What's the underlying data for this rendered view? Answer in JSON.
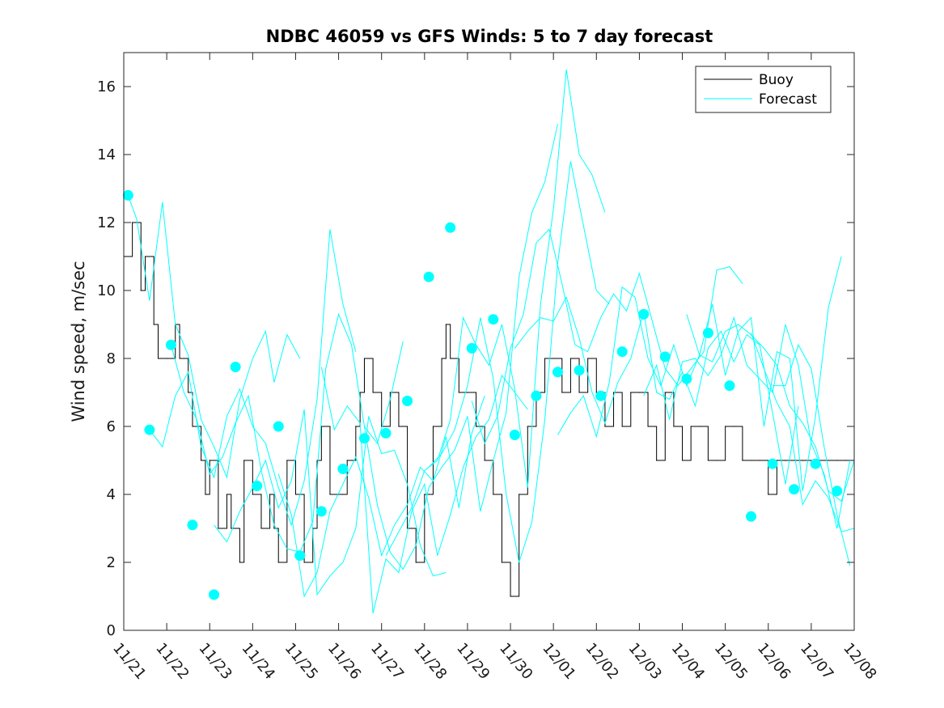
{
  "chart_data": {
    "type": "line",
    "title": "NDBC 46059 vs GFS Winds: 5 to 7 day forecast",
    "xlabel": "",
    "ylabel": "Wind speed, m/sec",
    "x_unit": "days since 11/21 00:00",
    "xlim": [
      0,
      17
    ],
    "ylim": [
      0,
      17
    ],
    "yticks": [
      0,
      2,
      4,
      6,
      8,
      10,
      12,
      14,
      16
    ],
    "xtick_labels": [
      "11/21",
      "11/22",
      "11/23",
      "11/24",
      "11/25",
      "11/26",
      "11/27",
      "11/28",
      "11/29",
      "11/30",
      "12/01",
      "12/02",
      "12/03",
      "12/04",
      "12/05",
      "12/06",
      "12/07",
      "12/08"
    ],
    "grid": false,
    "legend": {
      "placement": "top-right",
      "entries": [
        {
          "label": "Buoy",
          "color": "#000000"
        },
        {
          "label": "Forecast",
          "color": "#00ffff"
        }
      ]
    },
    "series": [
      {
        "name": "Buoy",
        "color": "#000000",
        "x": [
          0.0,
          0.2,
          0.4,
          0.5,
          0.7,
          0.8,
          1.0,
          1.2,
          1.3,
          1.5,
          1.6,
          1.8,
          1.9,
          2.0,
          2.2,
          2.4,
          2.5,
          2.7,
          2.8,
          3.0,
          3.2,
          3.4,
          3.5,
          3.6,
          3.8,
          4.0,
          4.2,
          4.4,
          4.5,
          4.6,
          4.8,
          5.0,
          5.1,
          5.2,
          5.4,
          5.5,
          5.6,
          5.8,
          6.0,
          6.2,
          6.4,
          6.6,
          6.8,
          7.0,
          7.2,
          7.4,
          7.5,
          7.6,
          7.8,
          8.0,
          8.2,
          8.4,
          8.6,
          8.8,
          9.0,
          9.2,
          9.4,
          9.5,
          9.6,
          9.8,
          10.0,
          10.2,
          10.4,
          10.6,
          10.8,
          11.0,
          11.2,
          11.4,
          11.6,
          11.8,
          12.0,
          12.2,
          12.4,
          12.6,
          12.8,
          13.0,
          13.2,
          13.4,
          13.6,
          13.8,
          14.0,
          14.2,
          14.4,
          14.6,
          14.8,
          15.0,
          15.2,
          15.4,
          15.6,
          15.8,
          16.0,
          16.2,
          16.4,
          16.6,
          16.8,
          17.0
        ],
        "y": [
          11,
          12,
          10,
          11,
          9,
          8,
          8,
          9,
          8,
          7,
          6,
          5,
          4,
          5,
          3,
          4,
          3,
          2,
          5,
          4,
          3,
          4,
          3,
          2,
          5,
          4,
          2,
          3,
          5,
          6,
          4,
          4,
          4,
          5,
          6,
          7,
          8,
          7,
          6,
          7,
          6,
          3,
          2,
          4,
          6,
          8,
          9,
          8,
          7,
          7,
          6,
          5,
          4,
          2,
          1,
          4,
          6,
          6,
          7,
          8,
          8,
          7,
          8,
          7,
          8,
          7,
          6,
          7,
          6,
          7,
          7,
          6,
          5,
          7,
          6,
          5,
          6,
          6,
          5,
          5,
          6,
          6,
          5,
          5,
          5,
          4,
          5,
          5,
          5,
          5,
          5,
          5,
          5,
          5,
          5,
          5
        ]
      },
      {
        "name": "Forecast",
        "color": "#00ffff",
        "x": [
          0.1,
          0.6,
          1.1,
          1.6,
          2.1,
          2.6,
          3.1,
          3.6,
          4.1,
          4.6,
          5.1,
          5.6,
          6.1,
          6.6,
          7.1,
          7.6,
          8.1,
          8.6,
          9.1,
          9.6,
          10.1,
          10.6,
          11.1,
          11.6,
          12.1,
          12.6,
          13.1,
          13.6,
          14.1,
          14.6,
          15.1,
          15.6,
          16.1,
          16.6
        ],
        "y": [
          12.8,
          5.9,
          8.4,
          3.1,
          1.05,
          7.75,
          4.25,
          6.0,
          2.2,
          3.5,
          4.75,
          5.65,
          5.8,
          6.75,
          10.4,
          11.85,
          8.3,
          9.15,
          5.75,
          6.9,
          7.6,
          7.65,
          6.9,
          8.2,
          9.3,
          8.05,
          7.4,
          8.75,
          7.2,
          3.35,
          4.9,
          4.15,
          4.9,
          4.1
        ]
      },
      {
        "name": "Forecast run 1",
        "color": "#00ffff",
        "x": [
          0.1,
          0.3,
          0.6,
          0.9,
          1.2,
          1.5,
          1.8,
          2.1,
          2.4,
          2.7,
          3.0,
          3.3,
          3.5,
          3.8,
          4.1
        ],
        "y": [
          12.8,
          12.1,
          9.7,
          12.6,
          9.0,
          8.1,
          6.2,
          5.4,
          4.5,
          6.8,
          8.0,
          8.8,
          7.3,
          8.7,
          8.0
        ]
      },
      {
        "name": "Forecast run 2",
        "color": "#00ffff",
        "x": [
          0.6,
          0.9,
          1.2,
          1.5,
          1.8,
          2.1,
          2.4,
          2.7,
          3.0,
          3.3,
          3.6,
          3.9,
          4.2,
          4.5,
          4.8,
          5.1,
          5.4
        ],
        "y": [
          5.9,
          5.4,
          6.9,
          7.6,
          5.4,
          4.5,
          6.3,
          7.1,
          6.0,
          5.5,
          4.2,
          3.1,
          4.4,
          6.8,
          11.8,
          9.6,
          8.2
        ]
      },
      {
        "name": "Forecast run 3",
        "color": "#00ffff",
        "x": [
          1.1,
          1.4,
          1.7,
          2.0,
          2.3,
          2.6,
          2.9,
          3.2,
          3.5,
          3.8,
          4.1,
          4.4,
          4.7,
          5.0,
          5.3,
          5.6,
          5.9,
          6.2,
          6.5
        ],
        "y": [
          8.4,
          7.0,
          6.2,
          4.6,
          5.1,
          6.1,
          6.9,
          4.7,
          3.1,
          2.4,
          2.3,
          3.2,
          7.7,
          9.3,
          8.4,
          6.0,
          5.5,
          6.8,
          8.5
        ]
      },
      {
        "name": "Forecast run 4",
        "color": "#00ffff",
        "x": [
          2.1,
          2.4,
          2.7,
          3.0,
          3.3,
          3.6,
          3.9,
          4.2,
          4.5,
          4.8,
          5.1,
          5.4,
          5.7,
          6.0,
          6.3,
          6.6,
          6.9,
          7.2,
          7.5
        ],
        "y": [
          3.1,
          2.6,
          3.5,
          4.2,
          5.0,
          3.6,
          4.4,
          6.5,
          1.05,
          1.6,
          2.0,
          3.0,
          6.3,
          5.2,
          5.3,
          4.3,
          2.5,
          1.6,
          1.7
        ]
      },
      {
        "name": "Forecast run 5",
        "color": "#00ffff",
        "x": [
          3.6,
          3.9,
          4.2,
          4.5,
          4.8,
          5.1,
          5.4,
          5.7,
          6.0,
          6.3,
          6.6,
          6.9,
          7.2,
          7.5,
          7.8,
          8.1,
          8.4
        ],
        "y": [
          4.6,
          3.4,
          1.0,
          1.7,
          3.5,
          4.3,
          5.1,
          3.9,
          2.2,
          3.1,
          3.7,
          4.8,
          4.4,
          5.7,
          3.6,
          5.8,
          6.9
        ]
      },
      {
        "name": "Forecast run 6",
        "color": "#00ffff",
        "x": [
          4.6,
          4.9,
          5.2,
          5.5,
          5.8,
          6.1,
          6.4,
          6.7,
          7.0,
          7.3,
          7.6,
          7.9,
          8.2,
          8.5,
          8.8,
          9.1,
          9.4
        ],
        "y": [
          7.75,
          5.9,
          6.6,
          6.1,
          0.5,
          2.1,
          1.7,
          3.5,
          4.3,
          2.2,
          3.4,
          4.8,
          5.7,
          6.2,
          7.5,
          7.0,
          6.5
        ]
      },
      {
        "name": "Forecast run 7",
        "color": "#00ffff",
        "x": [
          5.6,
          5.9,
          6.2,
          6.5,
          6.8,
          7.1,
          7.4,
          7.7,
          8.0,
          8.3,
          8.6,
          8.9,
          9.2,
          9.5,
          9.8,
          10.1
        ],
        "y": [
          6.0,
          3.7,
          2.3,
          1.8,
          2.5,
          4.2,
          4.8,
          5.3,
          6.3,
          3.5,
          5.0,
          6.4,
          10.4,
          12.3,
          13.2,
          14.9
        ]
      },
      {
        "name": "Forecast run 8",
        "color": "#00ffff",
        "x": [
          6.1,
          6.4,
          6.7,
          7.0,
          7.3,
          7.6,
          7.9,
          8.2,
          8.5,
          8.8,
          9.1,
          9.4,
          9.7,
          10.0,
          10.3,
          10.6,
          10.9,
          11.2
        ],
        "y": [
          2.2,
          2.9,
          3.6,
          4.7,
          5.0,
          6.2,
          9.2,
          8.4,
          7.8,
          9.0,
          7.1,
          4.2,
          9.6,
          12.4,
          16.5,
          14.0,
          13.4,
          12.3
        ]
      },
      {
        "name": "Forecast run 9",
        "color": "#00ffff",
        "x": [
          7.1,
          7.4,
          7.7,
          8.0,
          8.3,
          8.6,
          8.9,
          9.2,
          9.5,
          9.8,
          10.1,
          10.4,
          10.7,
          11.0,
          11.3
        ],
        "y": [
          4.8,
          5.2,
          5.9,
          7.2,
          9.2,
          7.4,
          4.0,
          2.0,
          3.2,
          6.2,
          10.8,
          13.8,
          11.9,
          10.0,
          9.6
        ]
      },
      {
        "name": "Forecast run 10",
        "color": "#00ffff",
        "x": [
          8.1,
          8.4,
          8.7,
          9.0,
          9.3,
          9.6,
          9.9,
          10.2,
          10.5,
          10.8,
          11.1,
          11.4,
          11.7,
          12.0,
          12.3,
          12.6,
          12.9,
          13.2,
          13.5,
          13.8,
          14.1,
          14.4
        ],
        "y": [
          6.75,
          5.5,
          6.3,
          8.3,
          9.3,
          11.4,
          11.8,
          10.2,
          8.4,
          8.2,
          9.2,
          9.9,
          9.4,
          10.5,
          9.1,
          7.7,
          7.2,
          7.7,
          8.2,
          10.6,
          10.7,
          10.2
        ]
      },
      {
        "name": "Forecast run 11",
        "color": "#00ffff",
        "x": [
          9.1,
          9.4,
          9.7,
          10.0,
          10.3,
          10.6,
          10.9,
          11.2,
          11.5,
          11.8,
          12.1,
          12.4,
          12.7,
          13.0,
          13.3,
          13.6,
          13.9,
          14.2,
          14.5,
          14.8,
          15.1,
          15.4,
          15.7
        ],
        "y": [
          8.3,
          8.8,
          9.2,
          9.1,
          9.8,
          8.6,
          7.0,
          6.1,
          7.3,
          8.0,
          9.4,
          7.0,
          6.8,
          7.6,
          6.6,
          8.3,
          8.8,
          7.9,
          8.7,
          8.4,
          6.4,
          4.3,
          6.6
        ]
      },
      {
        "name": "Forecast run 12",
        "color": "#00ffff",
        "x": [
          10.1,
          10.4,
          10.7,
          11.0,
          11.3,
          11.6,
          11.9,
          12.2,
          12.5,
          12.8,
          13.1,
          13.4,
          13.7,
          14.0,
          14.3,
          14.6,
          14.9,
          15.2,
          15.5,
          15.8,
          16.1,
          16.4,
          16.7
        ],
        "y": [
          5.75,
          6.4,
          6.9,
          5.7,
          7.3,
          10.1,
          9.8,
          8.0,
          7.2,
          8.4,
          7.2,
          8.1,
          9.6,
          7.5,
          8.8,
          9.2,
          6.0,
          8.2,
          8.0,
          4.1,
          6.3,
          9.5,
          11.0
        ]
      },
      {
        "name": "Forecast run 13",
        "color": "#00ffff",
        "x": [
          12.1,
          12.4,
          12.7,
          13.0,
          13.3,
          13.6,
          13.9,
          14.2,
          14.5,
          14.8,
          15.1,
          15.4,
          15.7,
          16.0,
          16.3,
          16.6,
          16.9
        ],
        "y": [
          6.9,
          7.8,
          6.2,
          7.9,
          8.0,
          7.5,
          8.1,
          9.2,
          7.8,
          7.4,
          7.0,
          9.0,
          7.8,
          5.5,
          4.6,
          3.0,
          5.0
        ]
      },
      {
        "name": "Forecast run 14",
        "color": "#00ffff",
        "x": [
          13.1,
          13.4,
          13.7,
          14.0,
          14.3,
          14.6,
          14.9,
          15.2,
          15.5,
          15.8,
          16.1,
          16.4,
          16.7,
          17.0
        ],
        "y": [
          9.3,
          8.1,
          7.9,
          8.8,
          9.0,
          8.7,
          8.3,
          7.8,
          6.6,
          6.1,
          5.4,
          4.1,
          3.8,
          5.0
        ]
      },
      {
        "name": "Forecast run 15",
        "color": "#00ffff",
        "x": [
          14.6,
          14.9,
          15.2,
          15.5,
          15.8,
          16.1,
          16.4,
          16.7,
          17.0
        ],
        "y": [
          8.75,
          7.7,
          6.7,
          6.0,
          3.7,
          4.4,
          3.9,
          2.9,
          3.0
        ]
      },
      {
        "name": "Forecast run 16",
        "color": "#00ffff",
        "x": [
          15.1,
          15.4,
          15.7,
          16.0,
          16.3,
          16.6,
          16.9
        ],
        "y": [
          7.2,
          7.2,
          8.4,
          7.7,
          5.4,
          3.4,
          1.9
        ]
      }
    ]
  }
}
